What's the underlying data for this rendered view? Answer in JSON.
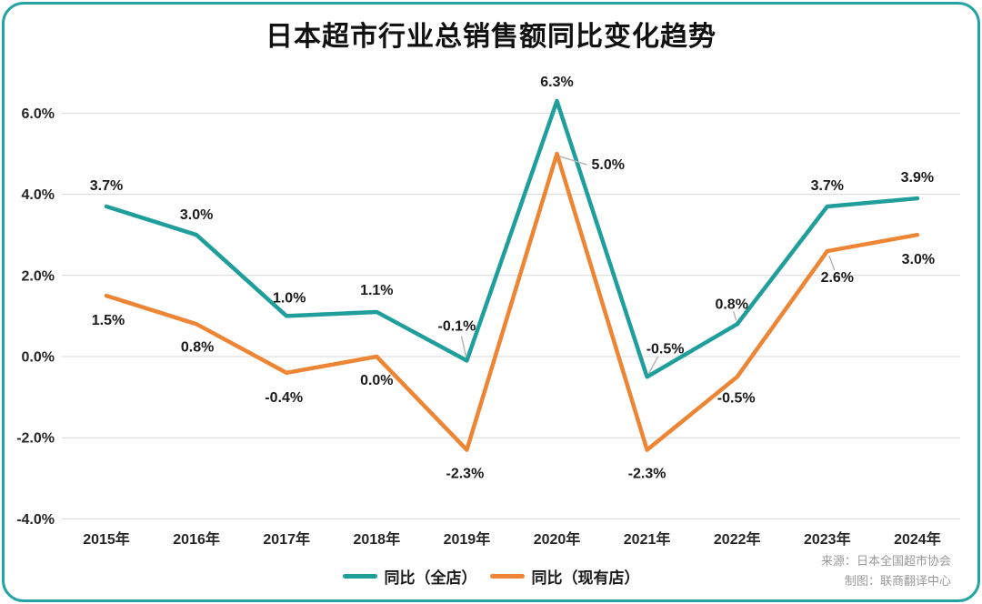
{
  "title": "日本超市行业总销售额同比变化趋势",
  "source": {
    "line1": "来源：日本全国超市协会",
    "line2": "制图：联商翻译中心"
  },
  "colors": {
    "teal": "#1f9e9b",
    "orange": "#ee8534",
    "grid": "#d9d9d9",
    "leader": "#b5b5b5",
    "border": "#25a3a4",
    "label": "#1a1a1a",
    "source_text": "#999999"
  },
  "chart_data": {
    "type": "line",
    "title": "日本超市行业总销售额同比变化趋势",
    "categories": [
      "2015年",
      "2016年",
      "2017年",
      "2018年",
      "2019年",
      "2020年",
      "2021年",
      "2022年",
      "2023年",
      "2024年"
    ],
    "series": [
      {
        "name": "同比（全店）",
        "color_key": "teal",
        "values": [
          3.7,
          3.0,
          1.0,
          1.1,
          -0.1,
          6.3,
          -0.5,
          0.8,
          3.7,
          3.9
        ]
      },
      {
        "name": "同比（现有店）",
        "color_key": "orange",
        "values": [
          1.5,
          0.8,
          -0.4,
          0.0,
          -2.3,
          5.0,
          -2.3,
          -0.5,
          2.6,
          3.0
        ]
      }
    ],
    "ytick_labels": [
      "6.0%",
      "4.0%",
      "2.0%",
      "0.0%",
      "-2.0%",
      "-4.0%"
    ],
    "ytick_values": [
      6,
      4,
      2,
      0,
      -2,
      -4
    ],
    "ylim": [
      -4.8,
      6.8
    ],
    "xlabel": "",
    "ylabel": "",
    "grid": true,
    "legend_position": "bottom",
    "data_labels": true,
    "label_format": "0.0%"
  }
}
